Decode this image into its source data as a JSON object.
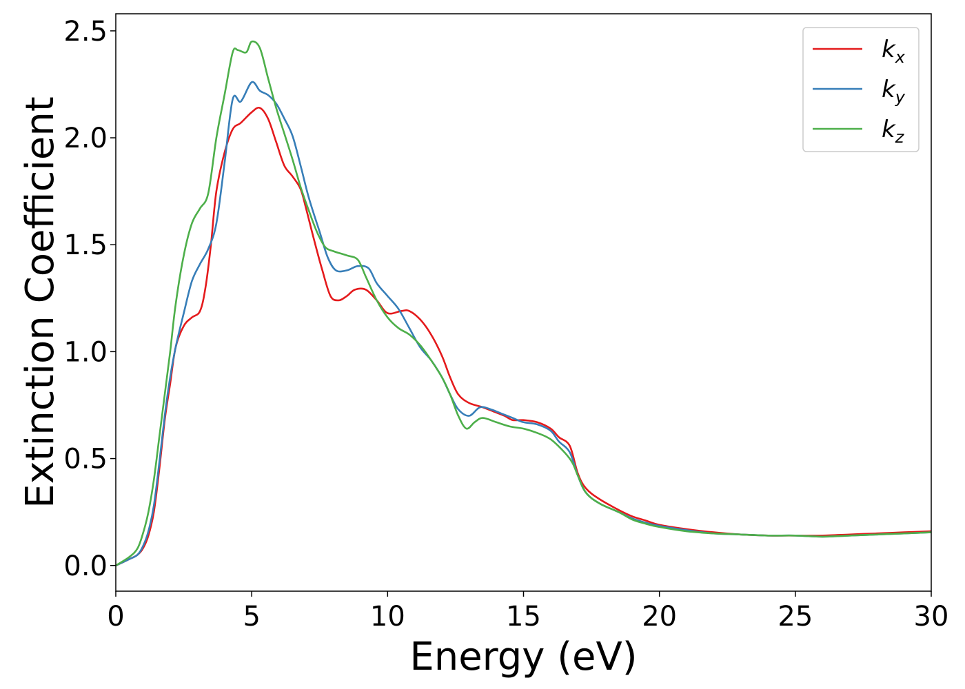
{
  "chart_data": {
    "type": "line",
    "title": "",
    "xlabel": "Energy (eV)",
    "ylabel": "Extinction Coefficient",
    "xlim": [
      0,
      30
    ],
    "ylim": [
      -0.12,
      2.58
    ],
    "xticks": [
      0,
      5,
      10,
      15,
      20,
      25,
      30
    ],
    "xtick_labels": [
      "0",
      "5",
      "10",
      "15",
      "20",
      "25",
      "30"
    ],
    "yticks": [
      0.0,
      0.5,
      1.0,
      1.5,
      2.0,
      2.5
    ],
    "ytick_labels": [
      "0.0",
      "0.5",
      "1.0",
      "1.5",
      "2.0",
      "2.5"
    ],
    "grid": false,
    "legend_position": "top-right",
    "series": [
      {
        "name": "k",
        "subscript": "x",
        "color": "#e41a1c",
        "points": [
          [
            0,
            0
          ],
          [
            0.5,
            0.03
          ],
          [
            0.8,
            0.05
          ],
          [
            1.0,
            0.08
          ],
          [
            1.2,
            0.14
          ],
          [
            1.4,
            0.25
          ],
          [
            1.6,
            0.45
          ],
          [
            1.8,
            0.68
          ],
          [
            2.0,
            0.85
          ],
          [
            2.2,
            1.02
          ],
          [
            2.5,
            1.12
          ],
          [
            2.8,
            1.16
          ],
          [
            3.1,
            1.19
          ],
          [
            3.3,
            1.3
          ],
          [
            3.5,
            1.5
          ],
          [
            3.7,
            1.75
          ],
          [
            4.0,
            1.93
          ],
          [
            4.3,
            2.04
          ],
          [
            4.6,
            2.07
          ],
          [
            5.0,
            2.12
          ],
          [
            5.3,
            2.14
          ],
          [
            5.6,
            2.09
          ],
          [
            5.9,
            1.98
          ],
          [
            6.2,
            1.87
          ],
          [
            6.5,
            1.82
          ],
          [
            6.8,
            1.76
          ],
          [
            7.0,
            1.67
          ],
          [
            7.3,
            1.52
          ],
          [
            7.6,
            1.38
          ],
          [
            7.9,
            1.26
          ],
          [
            8.2,
            1.24
          ],
          [
            8.5,
            1.26
          ],
          [
            8.8,
            1.29
          ],
          [
            9.2,
            1.29
          ],
          [
            9.6,
            1.24
          ],
          [
            10.0,
            1.18
          ],
          [
            10.5,
            1.19
          ],
          [
            10.8,
            1.19
          ],
          [
            11.2,
            1.15
          ],
          [
            11.6,
            1.08
          ],
          [
            12.0,
            0.98
          ],
          [
            12.3,
            0.88
          ],
          [
            12.6,
            0.8
          ],
          [
            13.0,
            0.76
          ],
          [
            13.5,
            0.74
          ],
          [
            13.9,
            0.72
          ],
          [
            14.3,
            0.7
          ],
          [
            14.6,
            0.68
          ],
          [
            15.0,
            0.68
          ],
          [
            15.5,
            0.67
          ],
          [
            16.0,
            0.64
          ],
          [
            16.3,
            0.6
          ],
          [
            16.7,
            0.56
          ],
          [
            17.0,
            0.43
          ],
          [
            17.3,
            0.36
          ],
          [
            17.8,
            0.31
          ],
          [
            18.5,
            0.26
          ],
          [
            19.0,
            0.23
          ],
          [
            19.5,
            0.21
          ],
          [
            20.0,
            0.19
          ],
          [
            21.0,
            0.17
          ],
          [
            22.0,
            0.155
          ],
          [
            23.0,
            0.145
          ],
          [
            24.0,
            0.14
          ],
          [
            25.0,
            0.14
          ],
          [
            26.0,
            0.14
          ],
          [
            27.0,
            0.145
          ],
          [
            28.0,
            0.15
          ],
          [
            29.0,
            0.155
          ],
          [
            30.0,
            0.16
          ]
        ]
      },
      {
        "name": "k",
        "subscript": "y",
        "color": "#377eb8",
        "points": [
          [
            0,
            0
          ],
          [
            0.5,
            0.03
          ],
          [
            0.8,
            0.05
          ],
          [
            1.0,
            0.09
          ],
          [
            1.2,
            0.16
          ],
          [
            1.4,
            0.28
          ],
          [
            1.6,
            0.48
          ],
          [
            1.8,
            0.7
          ],
          [
            2.0,
            0.88
          ],
          [
            2.2,
            1.02
          ],
          [
            2.5,
            1.18
          ],
          [
            2.8,
            1.33
          ],
          [
            3.1,
            1.41
          ],
          [
            3.4,
            1.48
          ],
          [
            3.7,
            1.6
          ],
          [
            4.0,
            1.88
          ],
          [
            4.3,
            2.18
          ],
          [
            4.6,
            2.17
          ],
          [
            5.0,
            2.26
          ],
          [
            5.3,
            2.22
          ],
          [
            5.6,
            2.2
          ],
          [
            5.9,
            2.16
          ],
          [
            6.2,
            2.09
          ],
          [
            6.5,
            2.01
          ],
          [
            6.8,
            1.87
          ],
          [
            7.1,
            1.72
          ],
          [
            7.5,
            1.56
          ],
          [
            7.8,
            1.44
          ],
          [
            8.1,
            1.38
          ],
          [
            8.5,
            1.38
          ],
          [
            8.9,
            1.4
          ],
          [
            9.3,
            1.39
          ],
          [
            9.6,
            1.32
          ],
          [
            10.0,
            1.26
          ],
          [
            10.4,
            1.2
          ],
          [
            10.8,
            1.11
          ],
          [
            11.2,
            1.02
          ],
          [
            11.6,
            0.96
          ],
          [
            12.0,
            0.88
          ],
          [
            12.3,
            0.8
          ],
          [
            12.6,
            0.73
          ],
          [
            13.0,
            0.7
          ],
          [
            13.4,
            0.74
          ],
          [
            13.8,
            0.73
          ],
          [
            14.2,
            0.71
          ],
          [
            14.6,
            0.69
          ],
          [
            15.0,
            0.67
          ],
          [
            15.5,
            0.66
          ],
          [
            16.0,
            0.63
          ],
          [
            16.3,
            0.58
          ],
          [
            16.7,
            0.53
          ],
          [
            17.0,
            0.42
          ],
          [
            17.3,
            0.34
          ],
          [
            17.8,
            0.29
          ],
          [
            18.5,
            0.25
          ],
          [
            19.0,
            0.22
          ],
          [
            19.5,
            0.2
          ],
          [
            20.0,
            0.185
          ],
          [
            21.0,
            0.165
          ],
          [
            22.0,
            0.15
          ],
          [
            23.0,
            0.145
          ],
          [
            24.0,
            0.14
          ],
          [
            25.0,
            0.14
          ],
          [
            26.0,
            0.135
          ],
          [
            27.0,
            0.14
          ],
          [
            28.0,
            0.145
          ],
          [
            29.0,
            0.15
          ],
          [
            30.0,
            0.155
          ]
        ]
      },
      {
        "name": "k",
        "subscript": "z",
        "color": "#4daf4a",
        "points": [
          [
            0,
            0
          ],
          [
            0.5,
            0.04
          ],
          [
            0.8,
            0.08
          ],
          [
            1.0,
            0.15
          ],
          [
            1.2,
            0.25
          ],
          [
            1.4,
            0.4
          ],
          [
            1.6,
            0.6
          ],
          [
            1.8,
            0.8
          ],
          [
            2.0,
            1.0
          ],
          [
            2.2,
            1.22
          ],
          [
            2.5,
            1.45
          ],
          [
            2.8,
            1.6
          ],
          [
            3.1,
            1.67
          ],
          [
            3.4,
            1.74
          ],
          [
            3.7,
            2.0
          ],
          [
            4.0,
            2.2
          ],
          [
            4.3,
            2.4
          ],
          [
            4.5,
            2.41
          ],
          [
            4.8,
            2.4
          ],
          [
            5.0,
            2.45
          ],
          [
            5.3,
            2.42
          ],
          [
            5.6,
            2.28
          ],
          [
            5.9,
            2.14
          ],
          [
            6.2,
            2.02
          ],
          [
            6.5,
            1.9
          ],
          [
            6.8,
            1.77
          ],
          [
            7.1,
            1.66
          ],
          [
            7.4,
            1.56
          ],
          [
            7.7,
            1.49
          ],
          [
            8.0,
            1.47
          ],
          [
            8.5,
            1.45
          ],
          [
            8.9,
            1.43
          ],
          [
            9.2,
            1.35
          ],
          [
            9.6,
            1.24
          ],
          [
            10.0,
            1.16
          ],
          [
            10.4,
            1.11
          ],
          [
            10.8,
            1.08
          ],
          [
            11.2,
            1.03
          ],
          [
            11.6,
            0.96
          ],
          [
            12.0,
            0.88
          ],
          [
            12.3,
            0.8
          ],
          [
            12.6,
            0.7
          ],
          [
            12.9,
            0.64
          ],
          [
            13.2,
            0.67
          ],
          [
            13.5,
            0.69
          ],
          [
            14.0,
            0.67
          ],
          [
            14.5,
            0.65
          ],
          [
            15.0,
            0.64
          ],
          [
            15.5,
            0.62
          ],
          [
            16.0,
            0.59
          ],
          [
            16.5,
            0.53
          ],
          [
            16.8,
            0.48
          ],
          [
            17.0,
            0.42
          ],
          [
            17.3,
            0.34
          ],
          [
            17.8,
            0.29
          ],
          [
            18.5,
            0.25
          ],
          [
            19.0,
            0.215
          ],
          [
            19.5,
            0.195
          ],
          [
            20.0,
            0.18
          ],
          [
            21.0,
            0.16
          ],
          [
            22.0,
            0.15
          ],
          [
            23.0,
            0.145
          ],
          [
            24.0,
            0.14
          ],
          [
            25.0,
            0.14
          ],
          [
            26.0,
            0.135
          ],
          [
            27.0,
            0.14
          ],
          [
            28.0,
            0.145
          ],
          [
            29.0,
            0.15
          ],
          [
            30.0,
            0.155
          ]
        ]
      }
    ]
  }
}
